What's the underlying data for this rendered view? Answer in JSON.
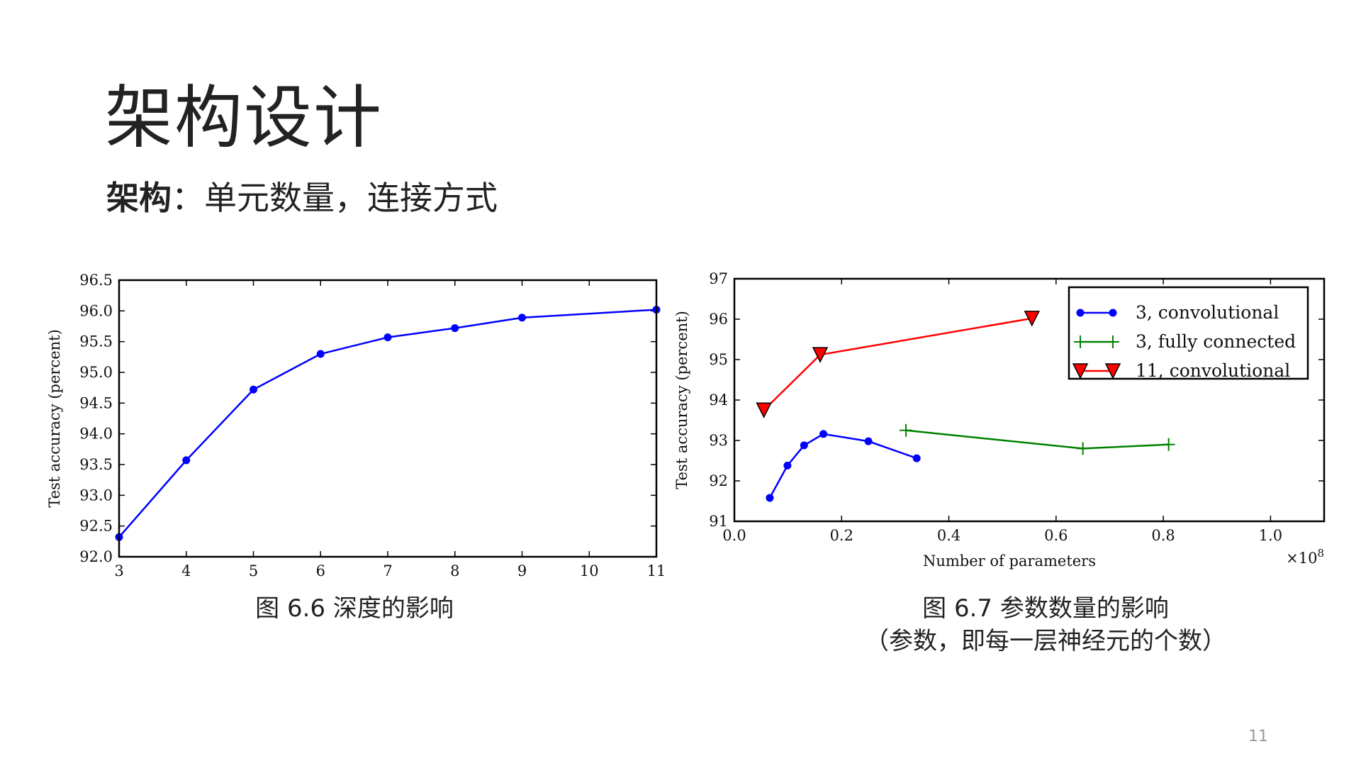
{
  "slide": {
    "title": "架构设计",
    "subtitle_bold": "架构",
    "subtitle_rest": "：单元数量，连接方式",
    "caption_left": "图 6.6  深度的影响",
    "caption_right_line1": "图 6.7  参数数量的影响",
    "caption_right_line2": "（参数，即每一层神经元的个数）",
    "page_number": "11"
  },
  "chart_data": [
    {
      "type": "line",
      "xlabel": "",
      "ylabel": "Test accuracy (percent)",
      "xlim": [
        3,
        11
      ],
      "ylim": [
        92.0,
        96.5
      ],
      "x_ticks": [
        "3",
        "4",
        "5",
        "6",
        "7",
        "8",
        "9",
        "10",
        "11"
      ],
      "x_tick_values": [
        3,
        4,
        5,
        6,
        7,
        8,
        9,
        10,
        11
      ],
      "y_ticks": [
        "92.0",
        "92.5",
        "93.0",
        "93.5",
        "94.0",
        "94.5",
        "95.0",
        "95.5",
        "96.0",
        "96.5"
      ],
      "y_tick_values": [
        92.0,
        92.5,
        93.0,
        93.5,
        94.0,
        94.5,
        95.0,
        95.5,
        96.0,
        96.5
      ],
      "grid": false,
      "series": [
        {
          "color": "#0000ff",
          "marker": "circle",
          "x": [
            3,
            4,
            5,
            6,
            7,
            8,
            9,
            11
          ],
          "y": [
            92.32,
            93.57,
            94.72,
            95.3,
            95.57,
            95.72,
            95.89,
            96.02
          ]
        }
      ]
    },
    {
      "type": "line",
      "xlabel": "Number of parameters",
      "ylabel": "Test accuracy (percent)",
      "x_multiplier_label": "×10",
      "x_multiplier_exp": "8",
      "xlim": [
        0.0,
        1.1
      ],
      "ylim": [
        91,
        97
      ],
      "x_ticks": [
        "0.0",
        "0.2",
        "0.4",
        "0.6",
        "0.8",
        "1.0"
      ],
      "x_tick_values": [
        0.0,
        0.2,
        0.4,
        0.6,
        0.8,
        1.0
      ],
      "y_ticks": [
        "91",
        "92",
        "93",
        "94",
        "95",
        "96",
        "97"
      ],
      "y_tick_values": [
        91,
        92,
        93,
        94,
        95,
        96,
        97
      ],
      "grid": false,
      "legend_position": "top-right",
      "series": [
        {
          "name": "3, convolutional",
          "color": "#0000ff",
          "marker": "circle",
          "x": [
            0.066,
            0.099,
            0.13,
            0.166,
            0.25,
            0.34
          ],
          "y": [
            91.58,
            92.38,
            92.88,
            93.16,
            92.98,
            92.56
          ]
        },
        {
          "name": "3, fully connected",
          "color": "#008000",
          "marker": "plus",
          "x": [
            0.32,
            0.65,
            0.81
          ],
          "y": [
            93.25,
            92.8,
            92.9
          ]
        },
        {
          "name": "11, convolutional",
          "color": "#ff0000",
          "marker": "triangle-down",
          "x": [
            0.055,
            0.16,
            0.555
          ],
          "y": [
            93.75,
            95.12,
            96.02
          ]
        }
      ]
    }
  ]
}
